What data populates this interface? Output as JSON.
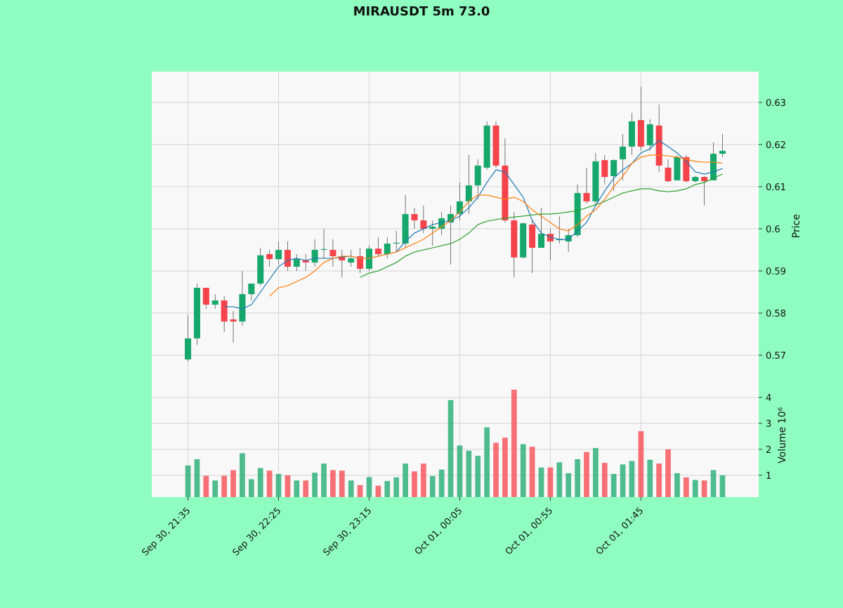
{
  "chart_data": {
    "type": "candlestick",
    "title": "MIRAUSDT 5m 73.0",
    "ylabel": "Price",
    "volume_label": "Volume  10⁶",
    "up_color": "#16a86b",
    "down_color": "#f5434b",
    "grid": true,
    "xlim": [
      -4,
      63
    ],
    "xticks": [
      {
        "value": 0,
        "label": "Sep 30, 21:35"
      },
      {
        "value": 10,
        "label": "Sep 30, 22:25"
      },
      {
        "value": 20,
        "label": "Sep 30, 23:15"
      },
      {
        "value": 30,
        "label": "Oct 01, 00:05"
      },
      {
        "value": 40,
        "label": "Oct 01, 00:55"
      },
      {
        "value": 50,
        "label": "Oct 01, 01:45"
      }
    ],
    "ylim": [
      0.563,
      0.6373
    ],
    "yticks": [
      0.57,
      0.58,
      0.59,
      0.6,
      0.61,
      0.62,
      0.63
    ],
    "volume_lim": [
      0.16,
      4.49
    ],
    "volume_ticks": [
      1,
      2,
      3,
      4
    ],
    "open": [
      0.569,
      0.574,
      0.586,
      0.582,
      0.583,
      0.5785,
      0.578,
      0.5845,
      0.587,
      0.594,
      0.5928,
      0.595,
      0.591,
      0.5925,
      0.592,
      0.595,
      0.595,
      0.5935,
      0.592,
      0.5935,
      0.5905,
      0.5953,
      0.594,
      0.5965,
      0.5965,
      0.6035,
      0.602,
      0.6,
      0.6,
      0.6015,
      0.6035,
      0.6065,
      0.6103,
      0.6145,
      0.6245,
      0.615,
      0.602,
      0.5932,
      0.601,
      0.5955,
      0.5988,
      0.5973,
      0.597,
      0.5985,
      0.6085,
      0.6065,
      0.6163,
      0.6125,
      0.6165,
      0.6195,
      0.6258,
      0.6198,
      0.6245,
      0.6145,
      0.6115,
      0.617,
      0.6113,
      0.6123,
      0.6115,
      0.6178
    ],
    "high": [
      0.5795,
      0.587,
      0.586,
      0.5845,
      0.584,
      0.5805,
      0.59,
      0.587,
      0.5955,
      0.595,
      0.597,
      0.597,
      0.594,
      0.594,
      0.5975,
      0.6,
      0.5975,
      0.595,
      0.595,
      0.5955,
      0.596,
      0.598,
      0.598,
      0.5995,
      0.608,
      0.605,
      0.6055,
      0.602,
      0.604,
      0.6055,
      0.611,
      0.6175,
      0.6165,
      0.6255,
      0.6255,
      0.6215,
      0.604,
      0.6015,
      0.602,
      0.605,
      0.6,
      0.603,
      0.6,
      0.6105,
      0.6145,
      0.618,
      0.6175,
      0.6165,
      0.6225,
      0.6275,
      0.6337,
      0.626,
      0.6295,
      0.6165,
      0.6175,
      0.6175,
      0.6125,
      0.6125,
      0.6205,
      0.6225
    ],
    "low": [
      0.5685,
      0.5725,
      0.581,
      0.581,
      0.5755,
      0.573,
      0.577,
      0.583,
      0.5865,
      0.591,
      0.5915,
      0.59,
      0.59,
      0.59,
      0.591,
      0.593,
      0.591,
      0.5885,
      0.591,
      0.5895,
      0.59,
      0.5935,
      0.593,
      0.5945,
      0.5955,
      0.6,
      0.599,
      0.596,
      0.5985,
      0.5915,
      0.602,
      0.6035,
      0.607,
      0.614,
      0.6145,
      0.6015,
      0.5885,
      0.593,
      0.5895,
      0.5955,
      0.5925,
      0.5965,
      0.5945,
      0.598,
      0.606,
      0.6055,
      0.6105,
      0.609,
      0.6115,
      0.6175,
      0.6185,
      0.6185,
      0.6135,
      0.611,
      0.6115,
      0.611,
      0.611,
      0.6055,
      0.6115,
      0.617
    ],
    "close": [
      0.574,
      0.586,
      0.582,
      0.583,
      0.578,
      0.578,
      0.5845,
      0.587,
      0.5937,
      0.5928,
      0.595,
      0.591,
      0.5928,
      0.592,
      0.595,
      0.5952,
      0.5935,
      0.5925,
      0.593,
      0.5905,
      0.5953,
      0.594,
      0.5965,
      0.5967,
      0.6035,
      0.602,
      0.6,
      0.6005,
      0.6025,
      0.6035,
      0.6065,
      0.6103,
      0.615,
      0.6245,
      0.615,
      0.602,
      0.5932,
      0.6013,
      0.5955,
      0.5988,
      0.597,
      0.5975,
      0.5985,
      0.6085,
      0.6065,
      0.616,
      0.6123,
      0.6163,
      0.6195,
      0.6255,
      0.6195,
      0.6248,
      0.615,
      0.6113,
      0.617,
      0.6113,
      0.6123,
      0.6113,
      0.6178,
      0.6185
    ],
    "volume": [
      1.38,
      1.62,
      0.98,
      0.8,
      0.98,
      1.2,
      1.85,
      0.85,
      1.28,
      1.18,
      1.05,
      1.0,
      0.8,
      0.8,
      1.1,
      1.45,
      1.2,
      1.18,
      0.8,
      0.62,
      0.93,
      0.6,
      0.78,
      0.92,
      1.45,
      1.15,
      1.45,
      0.97,
      1.22,
      3.9,
      2.15,
      1.95,
      1.75,
      2.85,
      2.25,
      2.45,
      4.3,
      2.2,
      2.1,
      1.3,
      1.3,
      1.5,
      1.08,
      1.62,
      1.9,
      2.05,
      1.48,
      1.05,
      1.42,
      1.55,
      2.7,
      1.6,
      1.45,
      2.0,
      1.08,
      0.92,
      0.82,
      0.8,
      1.2,
      1.0
    ],
    "series": [
      {
        "color": "#1f77b4",
        "values": [
          null,
          null,
          null,
          null,
          0.5815,
          0.5815,
          0.581,
          0.582,
          0.585,
          0.588,
          0.591,
          0.5925,
          0.593,
          0.5925,
          0.593,
          0.593,
          0.593,
          0.5933,
          0.5935,
          0.593,
          0.593,
          0.5935,
          0.594,
          0.5945,
          0.597,
          0.599,
          0.6,
          0.601,
          0.6015,
          0.602,
          0.603,
          0.605,
          0.6075,
          0.611,
          0.614,
          0.6135,
          0.6105,
          0.6075,
          0.602,
          0.599,
          0.598,
          0.5975,
          0.5975,
          0.5995,
          0.6015,
          0.6055,
          0.609,
          0.612,
          0.614,
          0.6155,
          0.618,
          0.619,
          0.621,
          0.6195,
          0.618,
          0.616,
          0.6135,
          0.613,
          0.6135,
          0.6143
        ]
      },
      {
        "color": "#ff7f0e",
        "values": [
          null,
          null,
          null,
          null,
          null,
          null,
          null,
          null,
          null,
          0.584,
          0.586,
          0.5865,
          0.5875,
          0.5885,
          0.59,
          0.592,
          0.593,
          0.5935,
          0.5935,
          0.593,
          0.593,
          0.5935,
          0.594,
          0.5945,
          0.5955,
          0.5965,
          0.5975,
          0.599,
          0.6005,
          0.602,
          0.604,
          0.6065,
          0.608,
          0.608,
          0.6075,
          0.607,
          0.6075,
          0.6065,
          0.6045,
          0.603,
          0.6015,
          0.6,
          0.5995,
          0.601,
          0.603,
          0.6045,
          0.607,
          0.61,
          0.6125,
          0.6155,
          0.617,
          0.6175,
          0.6175,
          0.6173,
          0.617,
          0.6165,
          0.616,
          0.6158,
          0.6158,
          0.6156
        ]
      },
      {
        "color": "#2ca02c",
        "values": [
          null,
          null,
          null,
          null,
          null,
          null,
          null,
          null,
          null,
          null,
          null,
          null,
          null,
          null,
          null,
          null,
          null,
          null,
          null,
          0.5885,
          0.5895,
          0.59,
          0.591,
          0.592,
          0.5935,
          0.5945,
          0.595,
          0.5955,
          0.596,
          0.5965,
          0.5975,
          0.599,
          0.601,
          0.6018,
          0.6022,
          0.6025,
          0.6028,
          0.603,
          0.6033,
          0.6035,
          0.6035,
          0.6037,
          0.604,
          0.6043,
          0.605,
          0.6057,
          0.6065,
          0.6075,
          0.6085,
          0.609,
          0.6095,
          0.6095,
          0.609,
          0.6088,
          0.609,
          0.6095,
          0.6105,
          0.611,
          0.612,
          0.613
        ]
      }
    ]
  }
}
